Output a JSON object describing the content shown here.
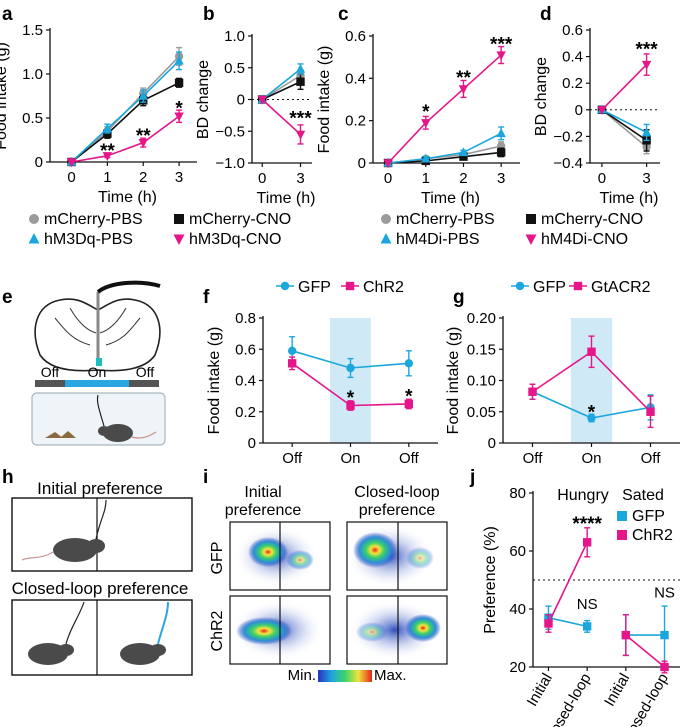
{
  "colors": {
    "gray": "#9b9b9b",
    "black": "#111111",
    "cyan": "#1ba7dd",
    "magenta": "#e5168a",
    "shade": "#cfe9f7"
  },
  "panel_letters": [
    "a",
    "b",
    "c",
    "d",
    "e",
    "f",
    "g",
    "h",
    "i",
    "j"
  ],
  "legends": {
    "ab": [
      {
        "name": "mCherry-PBS",
        "color": "gray",
        "marker": "circle"
      },
      {
        "name": "mCherry-CNO",
        "color": "black",
        "marker": "square"
      },
      {
        "name": "hM3Dq-PBS",
        "color": "cyan",
        "marker": "triangle-up"
      },
      {
        "name": "hM3Dq-CNO",
        "color": "magenta",
        "marker": "triangle-down"
      }
    ],
    "cd": [
      {
        "name": "mCherry-PBS",
        "color": "gray",
        "marker": "circle"
      },
      {
        "name": "mCherry-CNO",
        "color": "black",
        "marker": "square"
      },
      {
        "name": "hM4Di-PBS",
        "color": "cyan",
        "marker": "triangle-up"
      },
      {
        "name": "hM4Di-CNO",
        "color": "magenta",
        "marker": "triangle-down"
      }
    ]
  },
  "panel_e": {
    "labels": [
      "Off",
      "On",
      "Off"
    ]
  },
  "panel_h": {
    "top_title": "Initial preference",
    "bottom_title": "Closed-loop preference"
  },
  "panel_i": {
    "col_titles": [
      "Initial\npreference",
      "Closed-loop\npreference"
    ],
    "row_labels": [
      "GFP",
      "ChR2"
    ],
    "colorbar_min": "Min.",
    "colorbar_max": "Max."
  },
  "chart_data": [
    {
      "panel": "a",
      "type": "line",
      "ylabel": "Food intake (g)",
      "xlabel": "Time (h)",
      "x": [
        0,
        1,
        2,
        3
      ],
      "ylim": [
        0,
        1.5
      ],
      "yticks": [
        "0",
        "0.5",
        "1.0",
        "1.5"
      ],
      "xticks": [
        "0",
        "1",
        "2",
        "3"
      ],
      "series": [
        {
          "name": "mCherry-PBS",
          "color": "gray",
          "marker": "circle",
          "values": [
            0,
            0.35,
            0.78,
            1.2
          ],
          "err": [
            0,
            0.05,
            0.06,
            0.1
          ]
        },
        {
          "name": "mCherry-CNO",
          "color": "black",
          "marker": "square",
          "values": [
            0,
            0.32,
            0.7,
            0.9
          ],
          "err": [
            0,
            0.05,
            0.06,
            0.05
          ]
        },
        {
          "name": "hM3Dq-PBS",
          "color": "cyan",
          "marker": "triangle-up",
          "values": [
            0,
            0.38,
            0.75,
            1.15
          ],
          "err": [
            0,
            0.05,
            0.07,
            0.1
          ]
        },
        {
          "name": "hM3Dq-CNO",
          "color": "magenta",
          "marker": "triangle-down",
          "values": [
            0,
            0.07,
            0.22,
            0.52
          ],
          "err": [
            0,
            0.02,
            0.05,
            0.07
          ]
        }
      ],
      "annotations": [
        {
          "x": 1,
          "y": 0.15,
          "text": "**"
        },
        {
          "x": 2,
          "y": 0.32,
          "text": "**"
        },
        {
          "x": 3,
          "y": 0.63,
          "text": "*"
        }
      ]
    },
    {
      "panel": "b",
      "type": "line",
      "ylabel": "BD change",
      "xlabel": "Time (h)",
      "x": [
        0,
        3
      ],
      "ylim": [
        -1.0,
        1.0
      ],
      "yticks": [
        "−1.0",
        "−0.5",
        "0",
        "0.5",
        "1.0"
      ],
      "xticks": [
        "0",
        "3"
      ],
      "reference_line": 0,
      "series": [
        {
          "name": "mCherry-PBS",
          "color": "gray",
          "marker": "circle",
          "values": [
            0,
            0.38
          ],
          "err": [
            0,
            0.08
          ]
        },
        {
          "name": "mCherry-CNO",
          "color": "black",
          "marker": "square",
          "values": [
            0,
            0.28
          ],
          "err": [
            0,
            0.12
          ]
        },
        {
          "name": "hM3Dq-PBS",
          "color": "cyan",
          "marker": "triangle-up",
          "values": [
            0,
            0.48
          ],
          "err": [
            0,
            0.08
          ]
        },
        {
          "name": "hM3Dq-CNO",
          "color": "magenta",
          "marker": "triangle-down",
          "values": [
            0,
            -0.55
          ],
          "err": [
            0,
            0.15
          ]
        }
      ],
      "annotations": [
        {
          "x": 3,
          "y": -0.27,
          "text": "***"
        }
      ]
    },
    {
      "panel": "c",
      "type": "line",
      "ylabel": "Food intake (g)",
      "xlabel": "Time (h)",
      "x": [
        0,
        1,
        2,
        3
      ],
      "ylim": [
        0,
        0.6
      ],
      "yticks": [
        "0",
        "0.2",
        "0.4",
        "0.6"
      ],
      "xticks": [
        "0",
        "1",
        "2",
        "3"
      ],
      "series": [
        {
          "name": "mCherry-PBS",
          "color": "gray",
          "marker": "circle",
          "values": [
            0,
            0.02,
            0.04,
            0.08
          ],
          "err": [
            0,
            0.01,
            0.01,
            0.02
          ]
        },
        {
          "name": "mCherry-CNO",
          "color": "black",
          "marker": "square",
          "values": [
            0,
            0.01,
            0.03,
            0.05
          ],
          "err": [
            0,
            0.01,
            0.01,
            0.02
          ]
        },
        {
          "name": "hM4Di-PBS",
          "color": "cyan",
          "marker": "triangle-up",
          "values": [
            0,
            0.02,
            0.05,
            0.14
          ],
          "err": [
            0,
            0.01,
            0.01,
            0.03
          ]
        },
        {
          "name": "hM4Di-CNO",
          "color": "magenta",
          "marker": "triangle-down",
          "values": [
            0,
            0.19,
            0.35,
            0.51
          ],
          "err": [
            0,
            0.03,
            0.04,
            0.04
          ]
        }
      ],
      "annotations": [
        {
          "x": 1,
          "y": 0.25,
          "text": "*"
        },
        {
          "x": 2,
          "y": 0.41,
          "text": "**"
        },
        {
          "x": 3,
          "y": 0.57,
          "text": "***"
        }
      ]
    },
    {
      "panel": "d",
      "type": "line",
      "ylabel": "BD change",
      "xlabel": "Time (h)",
      "x": [
        0,
        3
      ],
      "ylim": [
        -0.4,
        0.6
      ],
      "yticks": [
        "−0.4",
        "−0.2",
        "0",
        "0.2",
        "0.4",
        "0.6"
      ],
      "xticks": [
        "0",
        "3"
      ],
      "reference_line": 0,
      "series": [
        {
          "name": "mCherry-PBS",
          "color": "gray",
          "marker": "circle",
          "values": [
            0,
            -0.28
          ],
          "err": [
            0,
            0.05
          ]
        },
        {
          "name": "mCherry-CNO",
          "color": "black",
          "marker": "square",
          "values": [
            0,
            -0.23
          ],
          "err": [
            0,
            0.08
          ]
        },
        {
          "name": "hM4Di-PBS",
          "color": "cyan",
          "marker": "triangle-up",
          "values": [
            0,
            -0.17
          ],
          "err": [
            0,
            0.06
          ]
        },
        {
          "name": "hM4Di-CNO",
          "color": "magenta",
          "marker": "triangle-down",
          "values": [
            0,
            0.34
          ],
          "err": [
            0,
            0.08
          ]
        }
      ],
      "annotations": [
        {
          "x": 3,
          "y": 0.47,
          "text": "***"
        }
      ]
    },
    {
      "panel": "f",
      "type": "line",
      "ylabel": "Food intake (g)",
      "xlabel": "",
      "x": [
        0,
        1,
        2
      ],
      "categories": [
        "Off",
        "On",
        "Off"
      ],
      "ylim": [
        0,
        0.8
      ],
      "yticks": [
        "0",
        "0.2",
        "0.4",
        "0.6",
        "0.8"
      ],
      "shaded_category": 1,
      "legend": [
        {
          "name": "GFP",
          "color": "cyan",
          "marker": "circle"
        },
        {
          "name": "ChR2",
          "color": "magenta",
          "marker": "square"
        }
      ],
      "series": [
        {
          "name": "GFP",
          "color": "cyan",
          "marker": "circle",
          "values": [
            0.59,
            0.48,
            0.51
          ],
          "err": [
            0.09,
            0.06,
            0.08
          ]
        },
        {
          "name": "ChR2",
          "color": "magenta",
          "marker": "square",
          "values": [
            0.51,
            0.24,
            0.25
          ],
          "err": [
            0.04,
            0.03,
            0.03
          ]
        }
      ],
      "annotations": [
        {
          "x": 1,
          "y": 0.3,
          "text": "*"
        },
        {
          "x": 2,
          "y": 0.31,
          "text": "*"
        }
      ]
    },
    {
      "panel": "g",
      "type": "line",
      "ylabel": "Food intake (g)",
      "xlabel": "",
      "x": [
        0,
        1,
        2
      ],
      "categories": [
        "Off",
        "On",
        "Off"
      ],
      "ylim": [
        0,
        0.2
      ],
      "yticks": [
        "0",
        "0.05",
        "0.10",
        "0.15",
        "0.20"
      ],
      "shaded_category": 1,
      "legend": [
        {
          "name": "GFP",
          "color": "cyan",
          "marker": "circle"
        },
        {
          "name": "GtACR2",
          "color": "magenta",
          "marker": "square"
        }
      ],
      "series": [
        {
          "name": "GFP",
          "color": "cyan",
          "marker": "circle",
          "values": [
            0.082,
            0.04,
            0.057
          ],
          "err": [
            0.012,
            0.006,
            0.02
          ]
        },
        {
          "name": "GtACR2",
          "color": "magenta",
          "marker": "square",
          "values": [
            0.082,
            0.146,
            0.05
          ],
          "err": [
            0.012,
            0.025,
            0.025
          ]
        }
      ],
      "annotations": [
        {
          "x": 1,
          "y": 0.052,
          "text": "*"
        }
      ]
    },
    {
      "panel": "j",
      "type": "line",
      "ylabel": "Preference (%)",
      "xlabel": "",
      "x": [
        0,
        1,
        2,
        3
      ],
      "categories": [
        "Initial",
        "Closed-loop",
        "Initial",
        "closed-loop"
      ],
      "ylim": [
        20,
        80
      ],
      "yticks": [
        "20",
        "40",
        "60",
        "80"
      ],
      "reference_line": 50,
      "group_labels": [
        "Hungry",
        "Sated"
      ],
      "legend": [
        {
          "name": "GFP",
          "color": "cyan",
          "marker": "square"
        },
        {
          "name": "ChR2",
          "color": "magenta",
          "marker": "square"
        }
      ],
      "series": [
        {
          "name": "GFP",
          "color": "cyan",
          "marker": "square",
          "segments": [
            [
              0,
              1
            ],
            [
              2,
              3
            ]
          ],
          "values": [
            37,
            34,
            31,
            31
          ],
          "err": [
            4,
            2,
            7,
            10
          ]
        },
        {
          "name": "ChR2",
          "color": "magenta",
          "marker": "square",
          "segments": [
            [
              0,
              1
            ],
            [
              2,
              3
            ]
          ],
          "values": [
            35,
            63,
            31,
            20
          ],
          "err": [
            3,
            5,
            7,
            2
          ]
        }
      ],
      "annotations": [
        {
          "x": 1,
          "y": 70,
          "text": "****"
        },
        {
          "x": 1,
          "y": 40,
          "text": "NS"
        },
        {
          "x": 3,
          "y": 44,
          "text": "NS"
        }
      ]
    }
  ]
}
